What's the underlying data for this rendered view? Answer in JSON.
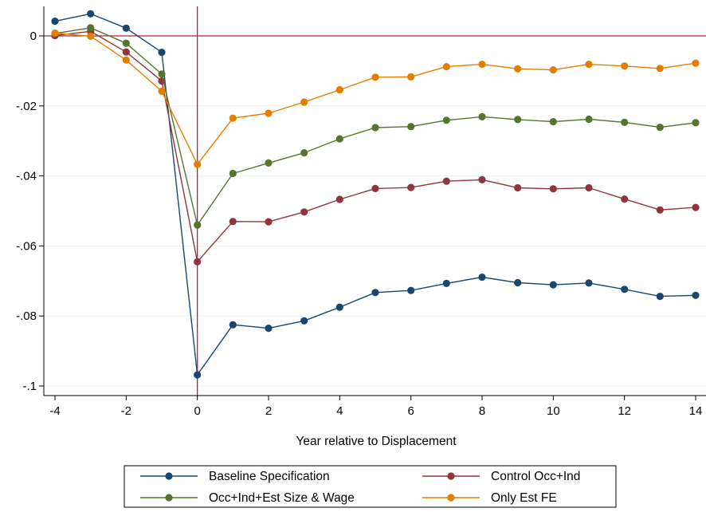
{
  "chart_data": {
    "type": "line",
    "title": "",
    "xlabel": "Year relative to Displacement",
    "ylabel": "",
    "xlim": [
      -4,
      14
    ],
    "ylim": [
      -0.1,
      0
    ],
    "x": [
      -4,
      -3,
      -2,
      -1,
      0,
      1,
      2,
      3,
      4,
      5,
      6,
      7,
      8,
      9,
      10,
      11,
      12,
      13,
      14
    ],
    "xticks": [
      -4,
      -2,
      0,
      2,
      4,
      6,
      8,
      10,
      12,
      14
    ],
    "xtick_labels": [
      "-4",
      "-2",
      "0",
      "2",
      "4",
      "6",
      "8",
      "10",
      "12",
      "14"
    ],
    "yticks": [
      0,
      -0.02,
      -0.04,
      -0.06,
      -0.08,
      -0.1
    ],
    "ytick_labels": [
      "0",
      "-.02",
      "-.04",
      "-.06",
      "-.08",
      "-.1"
    ],
    "reference_lines": {
      "y": 0,
      "x": 0,
      "color": "#b2243c"
    },
    "grid": "horizontal",
    "legend_position": "bottom",
    "series": [
      {
        "name": "Baseline Specification",
        "color": "#1a476f",
        "values": [
          0.0042,
          0.0063,
          0.0022,
          -0.0047,
          -0.0968,
          -0.0825,
          -0.0835,
          -0.0814,
          -0.0775,
          -0.0733,
          -0.0727,
          -0.0707,
          -0.0689,
          -0.0705,
          -0.0711,
          -0.0706,
          -0.0724,
          -0.0744,
          -0.0741
        ]
      },
      {
        "name": "Control Occ+Ind",
        "color": "#90353b",
        "values": [
          0.0001,
          0.0013,
          -0.0046,
          -0.0129,
          -0.0645,
          -0.053,
          -0.0531,
          -0.0503,
          -0.0467,
          -0.0436,
          -0.0433,
          -0.0415,
          -0.0411,
          -0.0434,
          -0.0437,
          -0.0434,
          -0.0466,
          -0.0497,
          -0.049
        ]
      },
      {
        "name": "Occ+Ind+Est Size & Wage",
        "color": "#55752f",
        "values": [
          0.0007,
          0.0023,
          -0.0021,
          -0.0109,
          -0.054,
          -0.0393,
          -0.0363,
          -0.0334,
          -0.0294,
          -0.0262,
          -0.0259,
          -0.0241,
          -0.0231,
          -0.0239,
          -0.0245,
          -0.0238,
          -0.0247,
          -0.0261,
          -0.0248
        ]
      },
      {
        "name": "Only Est FE",
        "color": "#e37e00",
        "values": [
          0.0008,
          -0.0001,
          -0.0069,
          -0.0158,
          -0.0367,
          -0.0235,
          -0.0221,
          -0.0189,
          -0.0154,
          -0.0118,
          -0.0117,
          -0.0088,
          -0.0081,
          -0.0094,
          -0.0097,
          -0.0081,
          -0.0086,
          -0.0093,
          -0.0078
        ]
      }
    ]
  }
}
